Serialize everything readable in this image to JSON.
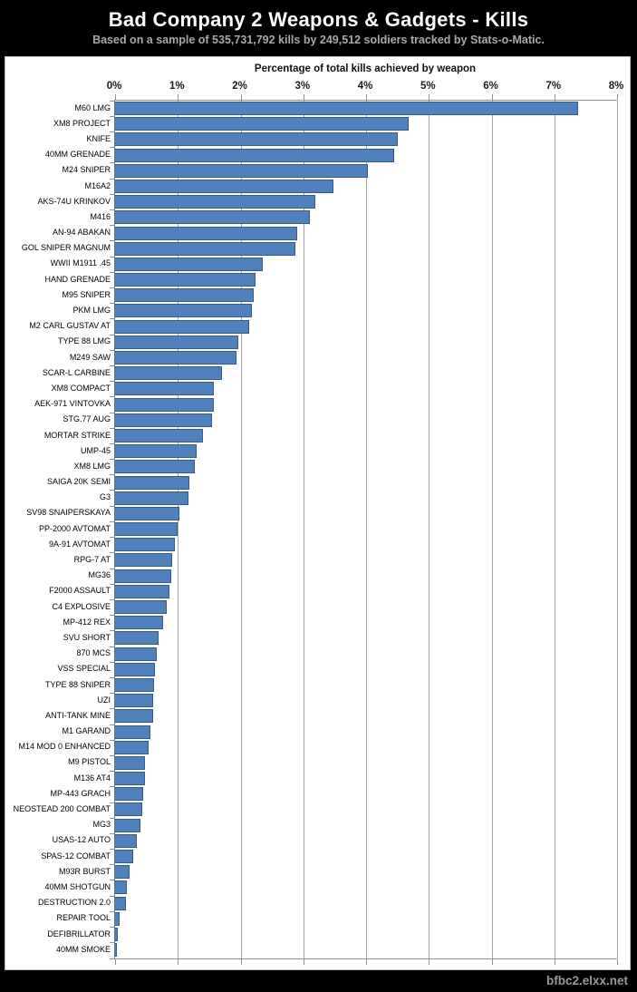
{
  "header": {
    "title": "Bad Company 2 Weapons & Gadgets - Kills",
    "subtitle": "Based on a sample of 535,731,792 kills by 249,512 soldiers tracked by Stats-o-Matic."
  },
  "chart_data": {
    "type": "bar",
    "orientation": "horizontal",
    "axis_title": "Percentage of total kills achieved by weapon",
    "x_ticks": [
      "0%",
      "1%",
      "2%",
      "3%",
      "4%",
      "5%",
      "6%",
      "7%",
      "8%"
    ],
    "xlim": [
      0,
      8
    ],
    "grid": true,
    "categories": [
      "M60 LMG",
      "XM8 PROJECT",
      "KNIFE",
      "40MM GRENADE",
      "M24 SNIPER",
      "M16A2",
      "AKS-74U KRINKOV",
      "M416",
      "AN-94 ABAKAN",
      "GOL SNIPER MAGNUM",
      "WWII M1911 .45",
      "HAND GRENADE",
      "M95 SNIPER",
      "PKM LMG",
      "M2 CARL GUSTAV AT",
      "TYPE 88 LMG",
      "M249 SAW",
      "SCAR-L CARBINE",
      "XM8 COMPACT",
      "AEK-971 VINTOVKA",
      "STG.77 AUG",
      "MORTAR STRIKE",
      "UMP-45",
      "XM8 LMG",
      "SAIGA 20K SEMI",
      "G3",
      "SV98 SNAIPERSKAYA",
      "PP-2000 AVTOMAT",
      "9A-91 AVTOMAT",
      "RPG-7 AT",
      "MG36",
      "F2000 ASSAULT",
      "C4 EXPLOSIVE",
      "MP-412 REX",
      "SVU SHORT",
      "870 MCS",
      "VSS SPECIAL",
      "TYPE 88 SNIPER",
      "UZI",
      "ANTI-TANK MINE",
      "M1 GARAND",
      "M14 MOD 0 ENHANCED",
      "M9 PISTOL",
      "M136 AT4",
      "MP-443 GRACH",
      "NEOSTEAD 200 COMBAT",
      "MG3",
      "USAS-12 AUTO",
      "SPAS-12 COMBAT",
      "M93R BURST",
      "40MM SHOTGUN",
      "DESTRUCTION 2.0",
      "REPAIR TOOL",
      "DEFIBRILLATOR",
      "40MM SMOKE"
    ],
    "values": [
      7.38,
      4.68,
      4.5,
      4.45,
      4.03,
      3.48,
      3.19,
      3.11,
      2.9,
      2.87,
      2.36,
      2.24,
      2.21,
      2.18,
      2.13,
      1.97,
      1.94,
      1.7,
      1.58,
      1.57,
      1.55,
      1.4,
      1.3,
      1.27,
      1.19,
      1.17,
      1.02,
      0.99,
      0.95,
      0.91,
      0.89,
      0.87,
      0.82,
      0.76,
      0.7,
      0.66,
      0.63,
      0.62,
      0.61,
      0.6,
      0.57,
      0.53,
      0.48,
      0.47,
      0.45,
      0.44,
      0.4,
      0.35,
      0.29,
      0.23,
      0.19,
      0.17,
      0.07,
      0.04,
      0.03
    ],
    "colors": {
      "bar_fill": "#4f81bd",
      "bar_border": "#355b8a",
      "gridline": "#a3a3a3",
      "background": "#ffffff",
      "page_background": "#000000"
    },
    "legend": false
  },
  "footer": {
    "watermark": "bfbc2.elxx.net"
  }
}
